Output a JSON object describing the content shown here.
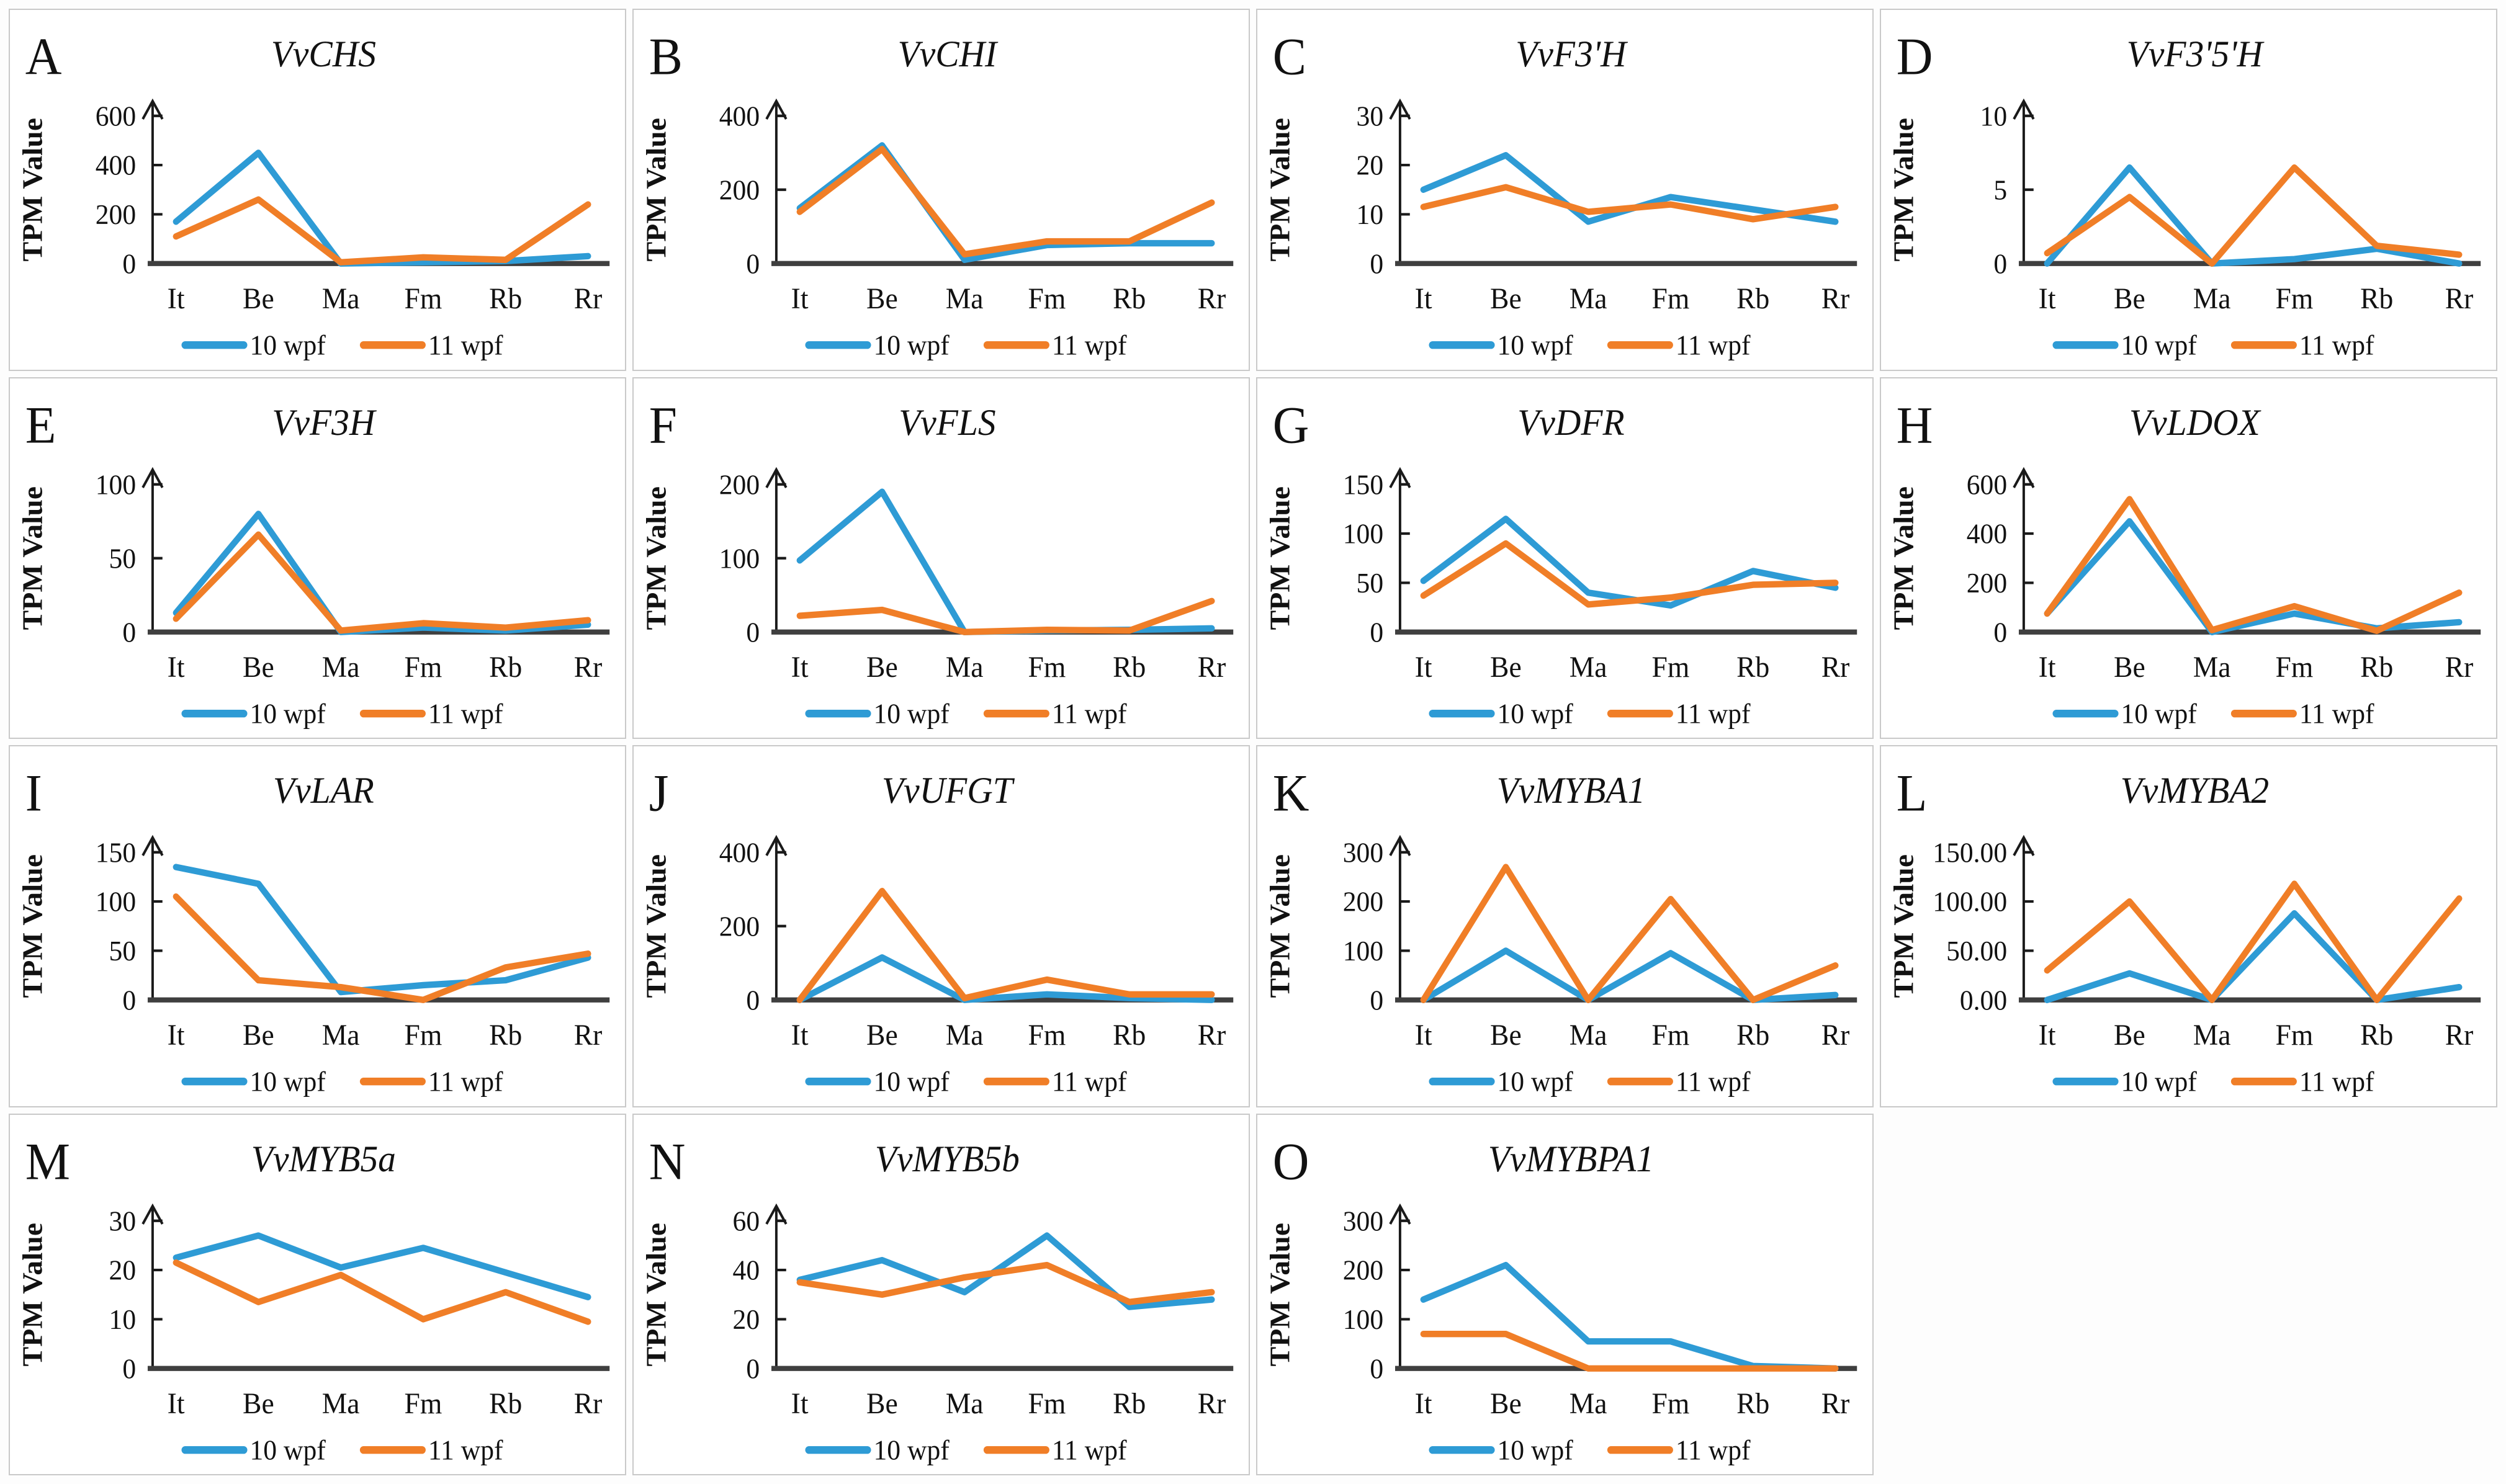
{
  "figure": {
    "ylabel": "TPM Value",
    "categories": [
      "It",
      "Be",
      "Ma",
      "Fm",
      "Rb",
      "Rr"
    ],
    "legend": [
      {
        "name": "10 wpf",
        "color": "#2E9BD5"
      },
      {
        "name": "11 wpf",
        "color": "#F07E27"
      }
    ],
    "axis_color": "#3f3f3f"
  },
  "chart_data": [
    {
      "type": "line",
      "panel": "A",
      "title": "VvCHS",
      "ylim": [
        0,
        600
      ],
      "yticks": [
        "0",
        "200",
        "400",
        "600"
      ],
      "categories": [
        "It",
        "Be",
        "Ma",
        "Fm",
        "Rb",
        "Rr"
      ],
      "series": [
        {
          "name": "10 wpf",
          "values": [
            170,
            450,
            0,
            5,
            10,
            30
          ]
        },
        {
          "name": "11 wpf",
          "values": [
            110,
            260,
            5,
            25,
            15,
            240
          ]
        }
      ],
      "legend_position": "bottom",
      "grid": false
    },
    {
      "type": "line",
      "panel": "B",
      "title": "VvCHI",
      "ylim": [
        0,
        400
      ],
      "yticks": [
        "0",
        "200",
        "400"
      ],
      "categories": [
        "It",
        "Be",
        "Ma",
        "Fm",
        "Rb",
        "Rr"
      ],
      "series": [
        {
          "name": "10 wpf",
          "values": [
            150,
            320,
            10,
            50,
            55,
            55
          ]
        },
        {
          "name": "11 wpf",
          "values": [
            140,
            310,
            25,
            60,
            60,
            165
          ]
        }
      ],
      "legend_position": "bottom",
      "grid": false
    },
    {
      "type": "line",
      "panel": "C",
      "title": "VvF3'H",
      "ylim": [
        0,
        30
      ],
      "yticks": [
        "0",
        "10",
        "20",
        "30"
      ],
      "categories": [
        "It",
        "Be",
        "Ma",
        "Fm",
        "Rb",
        "Rr"
      ],
      "series": [
        {
          "name": "10 wpf",
          "values": [
            15,
            22,
            8.5,
            13.5,
            11,
            8.5
          ]
        },
        {
          "name": "11 wpf",
          "values": [
            11.5,
            15.5,
            10.5,
            12,
            9,
            11.5
          ]
        }
      ],
      "legend_position": "bottom",
      "grid": false
    },
    {
      "type": "line",
      "panel": "D",
      "title": "VvF3'5'H",
      "ylim": [
        0,
        10
      ],
      "yticks": [
        "0",
        "5",
        "10"
      ],
      "categories": [
        "It",
        "Be",
        "Ma",
        "Fm",
        "Rb",
        "Rr"
      ],
      "series": [
        {
          "name": "10 wpf",
          "values": [
            0,
            6.5,
            0,
            0.3,
            1,
            0
          ]
        },
        {
          "name": "11 wpf",
          "values": [
            0.7,
            4.5,
            0,
            6.5,
            1.2,
            0.6
          ]
        }
      ],
      "legend_position": "bottom",
      "grid": false
    },
    {
      "type": "line",
      "panel": "E",
      "title": "VvF3H",
      "ylim": [
        0,
        100
      ],
      "yticks": [
        "0",
        "50",
        "100"
      ],
      "categories": [
        "It",
        "Be",
        "Ma",
        "Fm",
        "Rb",
        "Rr"
      ],
      "series": [
        {
          "name": "10 wpf",
          "values": [
            13,
            80,
            0,
            3,
            1,
            5
          ]
        },
        {
          "name": "11 wpf",
          "values": [
            9,
            66,
            1,
            6,
            3,
            8
          ]
        }
      ],
      "legend_position": "bottom",
      "grid": false
    },
    {
      "type": "line",
      "panel": "F",
      "title": "VvFLS",
      "ylim": [
        0,
        200
      ],
      "yticks": [
        "0",
        "100",
        "200"
      ],
      "categories": [
        "It",
        "Be",
        "Ma",
        "Fm",
        "Rb",
        "Rr"
      ],
      "series": [
        {
          "name": "10 wpf",
          "values": [
            97,
            190,
            0,
            2,
            3,
            5
          ]
        },
        {
          "name": "11 wpf",
          "values": [
            22,
            30,
            0,
            3,
            2,
            42
          ]
        }
      ],
      "legend_position": "bottom",
      "grid": false
    },
    {
      "type": "line",
      "panel": "G",
      "title": "VvDFR",
      "ylim": [
        0,
        150
      ],
      "yticks": [
        "0",
        "50",
        "100",
        "150"
      ],
      "categories": [
        "It",
        "Be",
        "Ma",
        "Fm",
        "Rb",
        "Rr"
      ],
      "series": [
        {
          "name": "10 wpf",
          "values": [
            52,
            115,
            40,
            27,
            62,
            45
          ]
        },
        {
          "name": "11 wpf",
          "values": [
            37,
            90,
            28,
            35,
            48,
            50
          ]
        }
      ],
      "legend_position": "bottom",
      "grid": false
    },
    {
      "type": "line",
      "panel": "H",
      "title": "VvLDOX",
      "ylim": [
        0,
        600
      ],
      "yticks": [
        "0",
        "200",
        "400",
        "600"
      ],
      "categories": [
        "It",
        "Be",
        "Ma",
        "Fm",
        "Rb",
        "Rr"
      ],
      "series": [
        {
          "name": "10 wpf",
          "values": [
            75,
            450,
            0,
            75,
            15,
            40
          ]
        },
        {
          "name": "11 wpf",
          "values": [
            75,
            540,
            8,
            105,
            5,
            160
          ]
        }
      ],
      "legend_position": "bottom",
      "grid": false
    },
    {
      "type": "line",
      "panel": "I",
      "title": "VvLAR",
      "ylim": [
        0,
        150
      ],
      "yticks": [
        "0",
        "50",
        "100",
        "150"
      ],
      "categories": [
        "It",
        "Be",
        "Ma",
        "Fm",
        "Rb",
        "Rr"
      ],
      "series": [
        {
          "name": "10 wpf",
          "values": [
            135,
            118,
            8,
            15,
            20,
            43
          ]
        },
        {
          "name": "11 wpf",
          "values": [
            105,
            20,
            13,
            0,
            33,
            47
          ]
        }
      ],
      "legend_position": "bottom",
      "grid": false
    },
    {
      "type": "line",
      "panel": "J",
      "title": "VvUFGT",
      "ylim": [
        0,
        400
      ],
      "yticks": [
        "0",
        "200",
        "400"
      ],
      "categories": [
        "It",
        "Be",
        "Ma",
        "Fm",
        "Rb",
        "Rr"
      ],
      "series": [
        {
          "name": "10 wpf",
          "values": [
            0,
            115,
            0,
            15,
            5,
            0
          ]
        },
        {
          "name": "11 wpf",
          "values": [
            0,
            295,
            5,
            55,
            15,
            15
          ]
        }
      ],
      "legend_position": "bottom",
      "grid": false
    },
    {
      "type": "line",
      "panel": "K",
      "title": "VvMYBA1",
      "ylim": [
        0,
        300
      ],
      "yticks": [
        "0",
        "100",
        "200",
        "300"
      ],
      "categories": [
        "It",
        "Be",
        "Ma",
        "Fm",
        "Rb",
        "Rr"
      ],
      "series": [
        {
          "name": "10 wpf",
          "values": [
            0,
            100,
            0,
            95,
            0,
            10
          ]
        },
        {
          "name": "11 wpf",
          "values": [
            0,
            270,
            0,
            205,
            0,
            70
          ]
        }
      ],
      "legend_position": "bottom",
      "grid": false
    },
    {
      "type": "line",
      "panel": "L",
      "title": "VvMYBA2",
      "ylim": [
        0,
        150
      ],
      "yticks": [
        "0.00",
        "50.00",
        "100.00",
        "150.00"
      ],
      "categories": [
        "It",
        "Be",
        "Ma",
        "Fm",
        "Rb",
        "Rr"
      ],
      "series": [
        {
          "name": "10 wpf",
          "values": [
            0,
            27,
            0,
            88,
            0,
            13
          ]
        },
        {
          "name": "11 wpf",
          "values": [
            30,
            100,
            0,
            118,
            0,
            103
          ]
        }
      ],
      "legend_position": "bottom",
      "grid": false
    },
    {
      "type": "line",
      "panel": "M",
      "title": "VvMYB5a",
      "ylim": [
        0,
        30
      ],
      "yticks": [
        "0",
        "10",
        "20",
        "30"
      ],
      "categories": [
        "It",
        "Be",
        "Ma",
        "Fm",
        "Rb",
        "Rr"
      ],
      "series": [
        {
          "name": "10 wpf",
          "values": [
            22.5,
            27,
            20.5,
            24.5,
            19.5,
            14.5
          ]
        },
        {
          "name": "11 wpf",
          "values": [
            21.5,
            13.5,
            19,
            10,
            15.5,
            9.5
          ]
        }
      ],
      "legend_position": "bottom",
      "grid": false
    },
    {
      "type": "line",
      "panel": "N",
      "title": "VvMYB5b",
      "ylim": [
        0,
        60
      ],
      "yticks": [
        "0",
        "20",
        "40",
        "60"
      ],
      "categories": [
        "It",
        "Be",
        "Ma",
        "Fm",
        "Rb",
        "Rr"
      ],
      "series": [
        {
          "name": "10 wpf",
          "values": [
            36,
            44,
            31,
            54,
            25,
            28
          ]
        },
        {
          "name": "11 wpf",
          "values": [
            35,
            30,
            37,
            42,
            27,
            31
          ]
        }
      ],
      "legend_position": "bottom",
      "grid": false
    },
    {
      "type": "line",
      "panel": "O",
      "title": "VvMYBPA1",
      "ylim": [
        0,
        300
      ],
      "yticks": [
        "0",
        "100",
        "200",
        "300"
      ],
      "categories": [
        "It",
        "Be",
        "Ma",
        "Fm",
        "Rb",
        "Rr"
      ],
      "series": [
        {
          "name": "10 wpf",
          "values": [
            140,
            210,
            55,
            55,
            5,
            0
          ]
        },
        {
          "name": "11 wpf",
          "values": [
            70,
            70,
            0,
            0,
            0,
            0
          ]
        }
      ],
      "legend_position": "bottom",
      "grid": false
    }
  ]
}
